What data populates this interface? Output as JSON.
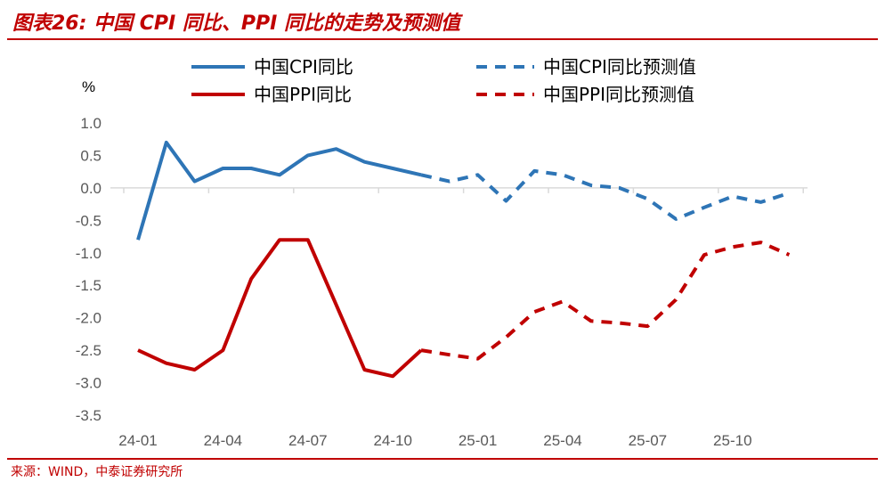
{
  "title": "图表26:  中国 CPI 同比、PPI 同比的走势及预测值",
  "source": "来源：WIND，中泰证券研究所",
  "chart_data": {
    "type": "line",
    "unit": "%",
    "x": [
      "24-01",
      "24-02",
      "24-03",
      "24-04",
      "24-05",
      "24-06",
      "24-07",
      "24-08",
      "24-09",
      "24-10",
      "24-11",
      "24-12",
      "25-01",
      "25-02",
      "25-03",
      "25-04",
      "25-05",
      "25-06",
      "25-07",
      "25-08",
      "25-09",
      "25-10",
      "25-11",
      "25-12"
    ],
    "x_tick_labels": [
      "24-01",
      "24-04",
      "24-07",
      "24-10",
      "25-01",
      "25-04",
      "25-07",
      "25-10"
    ],
    "y_ticks": [
      "1.0",
      "0.5",
      "0.0",
      "-0.5",
      "-1.0",
      "-1.5",
      "-2.0",
      "-2.5",
      "-3.0",
      "-3.5"
    ],
    "ylim": [
      -3.5,
      1.0
    ],
    "legend_position": "top",
    "grid": false,
    "series": [
      {
        "name": "中国CPI同比",
        "style": "solid",
        "color": "#2E75B6",
        "values": [
          -0.8,
          0.7,
          0.1,
          0.3,
          0.3,
          0.2,
          0.5,
          0.6,
          0.4,
          0.3,
          0.2,
          null,
          null,
          null,
          null,
          null,
          null,
          null,
          null,
          null,
          null,
          null,
          null,
          null
        ]
      },
      {
        "name": "中国CPI同比预测值",
        "style": "dashed",
        "color": "#2E75B6",
        "values": [
          null,
          null,
          null,
          null,
          null,
          null,
          null,
          null,
          null,
          null,
          0.2,
          0.1,
          0.2,
          -0.2,
          0.26,
          0.2,
          0.04,
          0.0,
          -0.17,
          -0.48,
          -0.3,
          -0.13,
          -0.22,
          -0.08
        ]
      },
      {
        "name": "中国PPI同比",
        "style": "solid",
        "color": "#C00000",
        "values": [
          -2.5,
          -2.7,
          -2.8,
          -2.5,
          -1.4,
          -0.8,
          -0.8,
          -1.8,
          -2.8,
          -2.9,
          -2.5,
          null,
          null,
          null,
          null,
          null,
          null,
          null,
          null,
          null,
          null,
          null,
          null,
          null
        ]
      },
      {
        "name": "中国PPI同比预测值",
        "style": "dashed",
        "color": "#C00000",
        "values": [
          null,
          null,
          null,
          null,
          null,
          null,
          null,
          null,
          null,
          null,
          -2.5,
          -2.57,
          -2.63,
          -2.3,
          -1.91,
          -1.75,
          -2.05,
          -2.08,
          -2.13,
          -1.72,
          -1.03,
          -0.91,
          -0.84,
          -1.03
        ]
      }
    ]
  },
  "colors": {
    "accent": "#C00000",
    "cpi": "#2E75B6",
    "ppi": "#C00000",
    "axis": "#D9D9D9",
    "tick_text": "#595959"
  }
}
